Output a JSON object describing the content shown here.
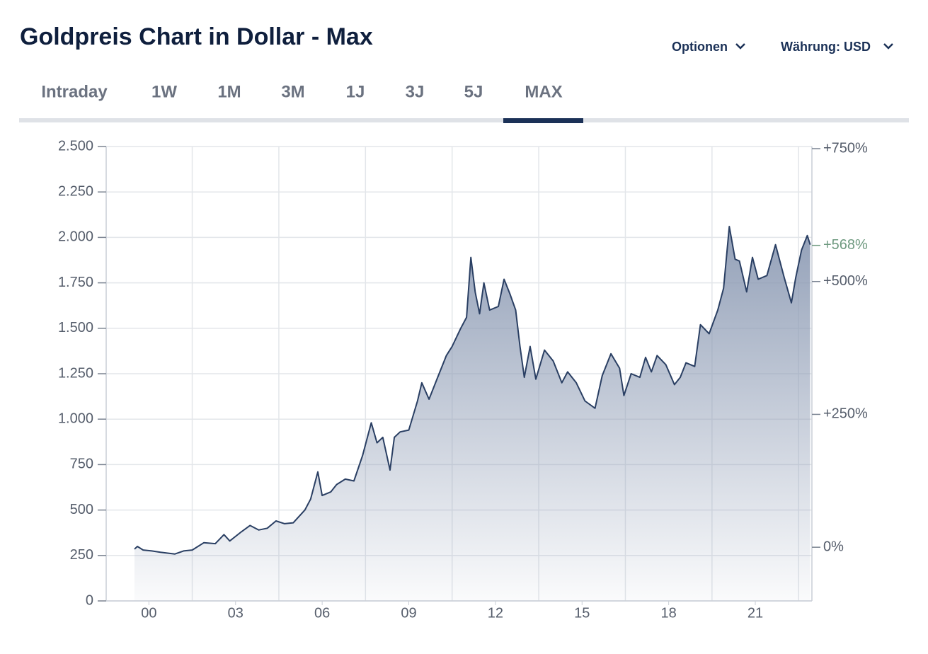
{
  "header": {
    "title": "Goldpreis Chart in Dollar - Max",
    "options": "Optionen",
    "currency": "Währung: USD"
  },
  "tabs": {
    "items": [
      "Intraday",
      "1W",
      "1M",
      "3M",
      "1J",
      "3J",
      "5J",
      "MAX"
    ],
    "active": 7
  },
  "chart_data": {
    "type": "area",
    "color": "#2a3f63",
    "fill": "#8d9bb4",
    "x": [
      2000.0,
      2000.1,
      2000.3,
      2000.6,
      2000.9,
      2001.2,
      2001.4,
      2001.7,
      2002.0,
      2002.4,
      2002.8,
      2003.1,
      2003.3,
      2003.7,
      2004.0,
      2004.3,
      2004.6,
      2004.9,
      2005.2,
      2005.5,
      2005.9,
      2006.1,
      2006.35,
      2006.5,
      2006.8,
      2007.0,
      2007.3,
      2007.6,
      2007.9,
      2008.2,
      2008.4,
      2008.6,
      2008.85,
      2009.0,
      2009.2,
      2009.5,
      2009.8,
      2009.95,
      2010.2,
      2010.5,
      2010.8,
      2011.0,
      2011.3,
      2011.5,
      2011.65,
      2011.8,
      2011.95,
      2012.1,
      2012.3,
      2012.6,
      2012.8,
      2013.0,
      2013.2,
      2013.35,
      2013.5,
      2013.7,
      2013.9,
      2014.2,
      2014.5,
      2014.8,
      2015.0,
      2015.3,
      2015.6,
      2015.95,
      2016.2,
      2016.5,
      2016.8,
      2016.95,
      2017.2,
      2017.5,
      2017.7,
      2017.9,
      2018.1,
      2018.4,
      2018.7,
      2018.9,
      2019.1,
      2019.4,
      2019.6,
      2019.9,
      2020.2,
      2020.4,
      2020.6,
      2020.8,
      2020.95,
      2021.2,
      2021.4,
      2021.6,
      2021.9,
      2022.2,
      2022.5,
      2022.75,
      2022.9,
      2023.1,
      2023.3,
      2023.4
    ],
    "values": [
      285,
      300,
      280,
      275,
      268,
      262,
      258,
      275,
      280,
      320,
      315,
      365,
      330,
      380,
      415,
      390,
      400,
      440,
      425,
      430,
      500,
      560,
      710,
      580,
      600,
      640,
      670,
      660,
      800,
      980,
      870,
      900,
      720,
      900,
      930,
      940,
      1100,
      1200,
      1110,
      1230,
      1350,
      1400,
      1500,
      1560,
      1890,
      1700,
      1580,
      1750,
      1600,
      1620,
      1770,
      1690,
      1600,
      1400,
      1230,
      1400,
      1220,
      1380,
      1320,
      1200,
      1260,
      1200,
      1100,
      1060,
      1240,
      1360,
      1280,
      1130,
      1250,
      1230,
      1340,
      1260,
      1350,
      1300,
      1190,
      1230,
      1310,
      1290,
      1520,
      1470,
      1600,
      1720,
      2060,
      1880,
      1870,
      1700,
      1890,
      1770,
      1790,
      1960,
      1780,
      1640,
      1780,
      1930,
      2010,
      1960
    ],
    "xlim": [
      1999.02,
      2023.46
    ],
    "xticks": [
      {
        "value": 2000.5,
        "label": "00"
      },
      {
        "value": 2003.5,
        "label": "03"
      },
      {
        "value": 2006.5,
        "label": "06"
      },
      {
        "value": 2009.5,
        "label": "09"
      },
      {
        "value": 2012.5,
        "label": "12"
      },
      {
        "value": 2015.5,
        "label": "15"
      },
      {
        "value": 2018.5,
        "label": "18"
      },
      {
        "value": 2021.5,
        "label": "21"
      }
    ],
    "xgrid": [
      2002,
      2005,
      2008,
      2011,
      2014,
      2017,
      2020,
      2023
    ],
    "ylim": [
      0,
      2500
    ],
    "yticks": [
      0,
      250,
      500,
      750,
      {
        "value": 1000,
        "label": "1.000"
      },
      {
        "value": 1250,
        "label": "1.250"
      },
      {
        "value": 1500,
        "label": "1.500"
      },
      {
        "value": 1750,
        "label": "1.750"
      },
      {
        "value": 2000,
        "label": "2.000"
      },
      {
        "value": 2250,
        "label": "2.250"
      },
      {
        "value": 2500,
        "label": "2.500"
      }
    ],
    "y2lim": [
      -101,
      754
    ],
    "y2ticks": [
      {
        "value": 0,
        "label": "0%"
      },
      {
        "value": 250,
        "label": "+250%"
      },
      {
        "value": 500,
        "label": "+500%"
      },
      {
        "value": 750,
        "label": "+750%"
      }
    ],
    "current": {
      "value": 568,
      "label": "+568%",
      "color": "#6f9a80"
    },
    "grid": true
  }
}
